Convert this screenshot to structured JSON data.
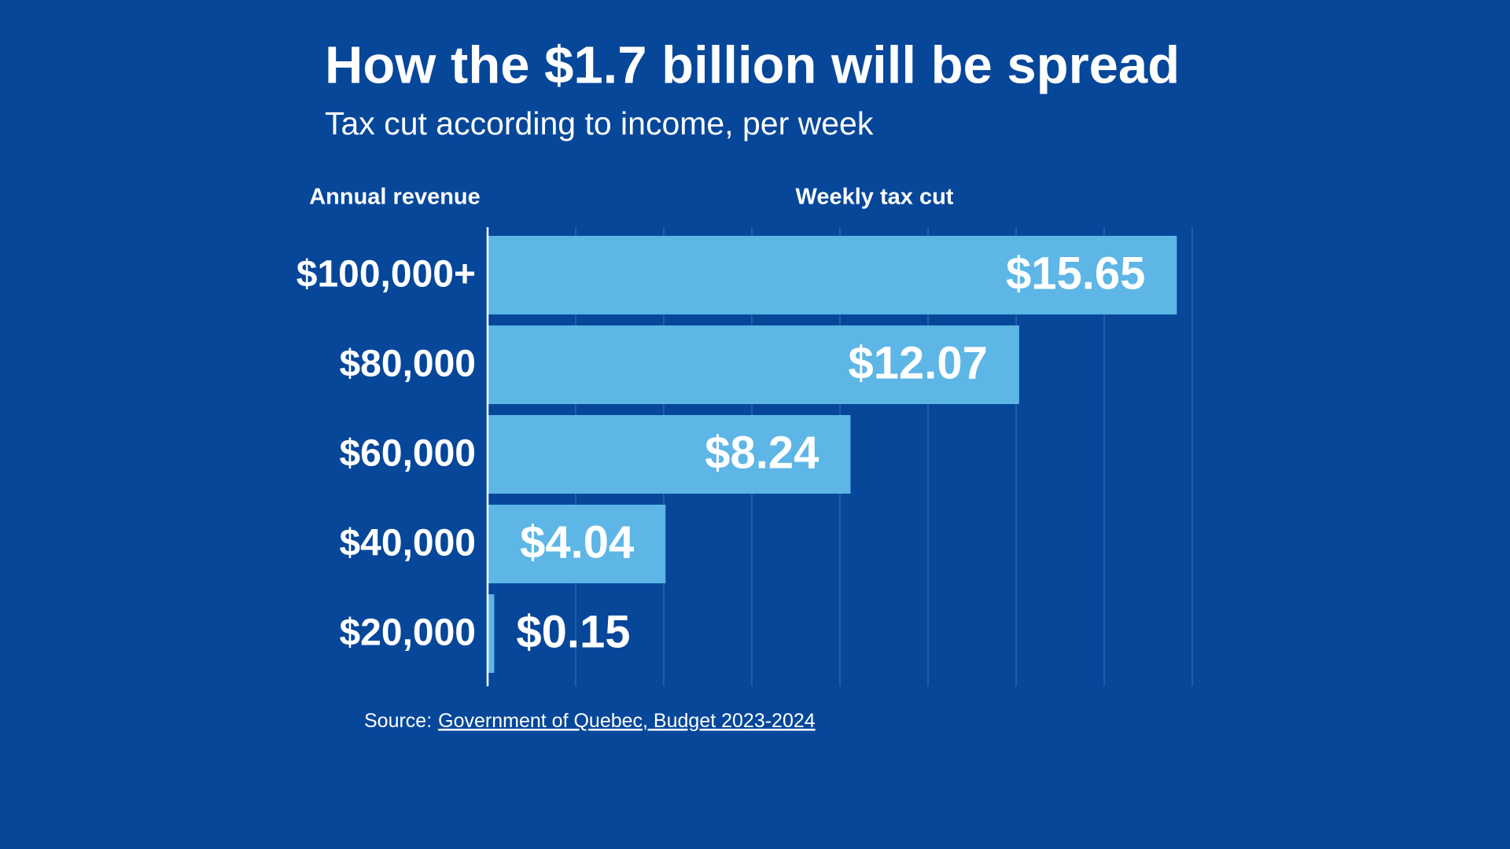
{
  "chart_data": {
    "type": "bar",
    "orientation": "horizontal",
    "title": "How the $1.7 billion will be spread",
    "subtitle": "Tax cut according to income, per week",
    "y_label": "Annual revenue",
    "x_label": "Weekly tax cut",
    "categories": [
      "$100,000+",
      "$80,000",
      "$60,000",
      "$40,000",
      "$20,000"
    ],
    "values": [
      15.65,
      12.07,
      8.24,
      4.04,
      0.15
    ],
    "value_labels": [
      "$15.65",
      "$12.07",
      "$8.24",
      "$4.04",
      "$0.15"
    ],
    "color": "#5db6e6",
    "xlim": [
      0,
      16
    ],
    "xticks": [
      0,
      2,
      4,
      6,
      8,
      10,
      12,
      14,
      16
    ],
    "grid": true,
    "source_prefix": "Source:",
    "source_link": "Government of Quebec, Budget 2023-2024"
  }
}
